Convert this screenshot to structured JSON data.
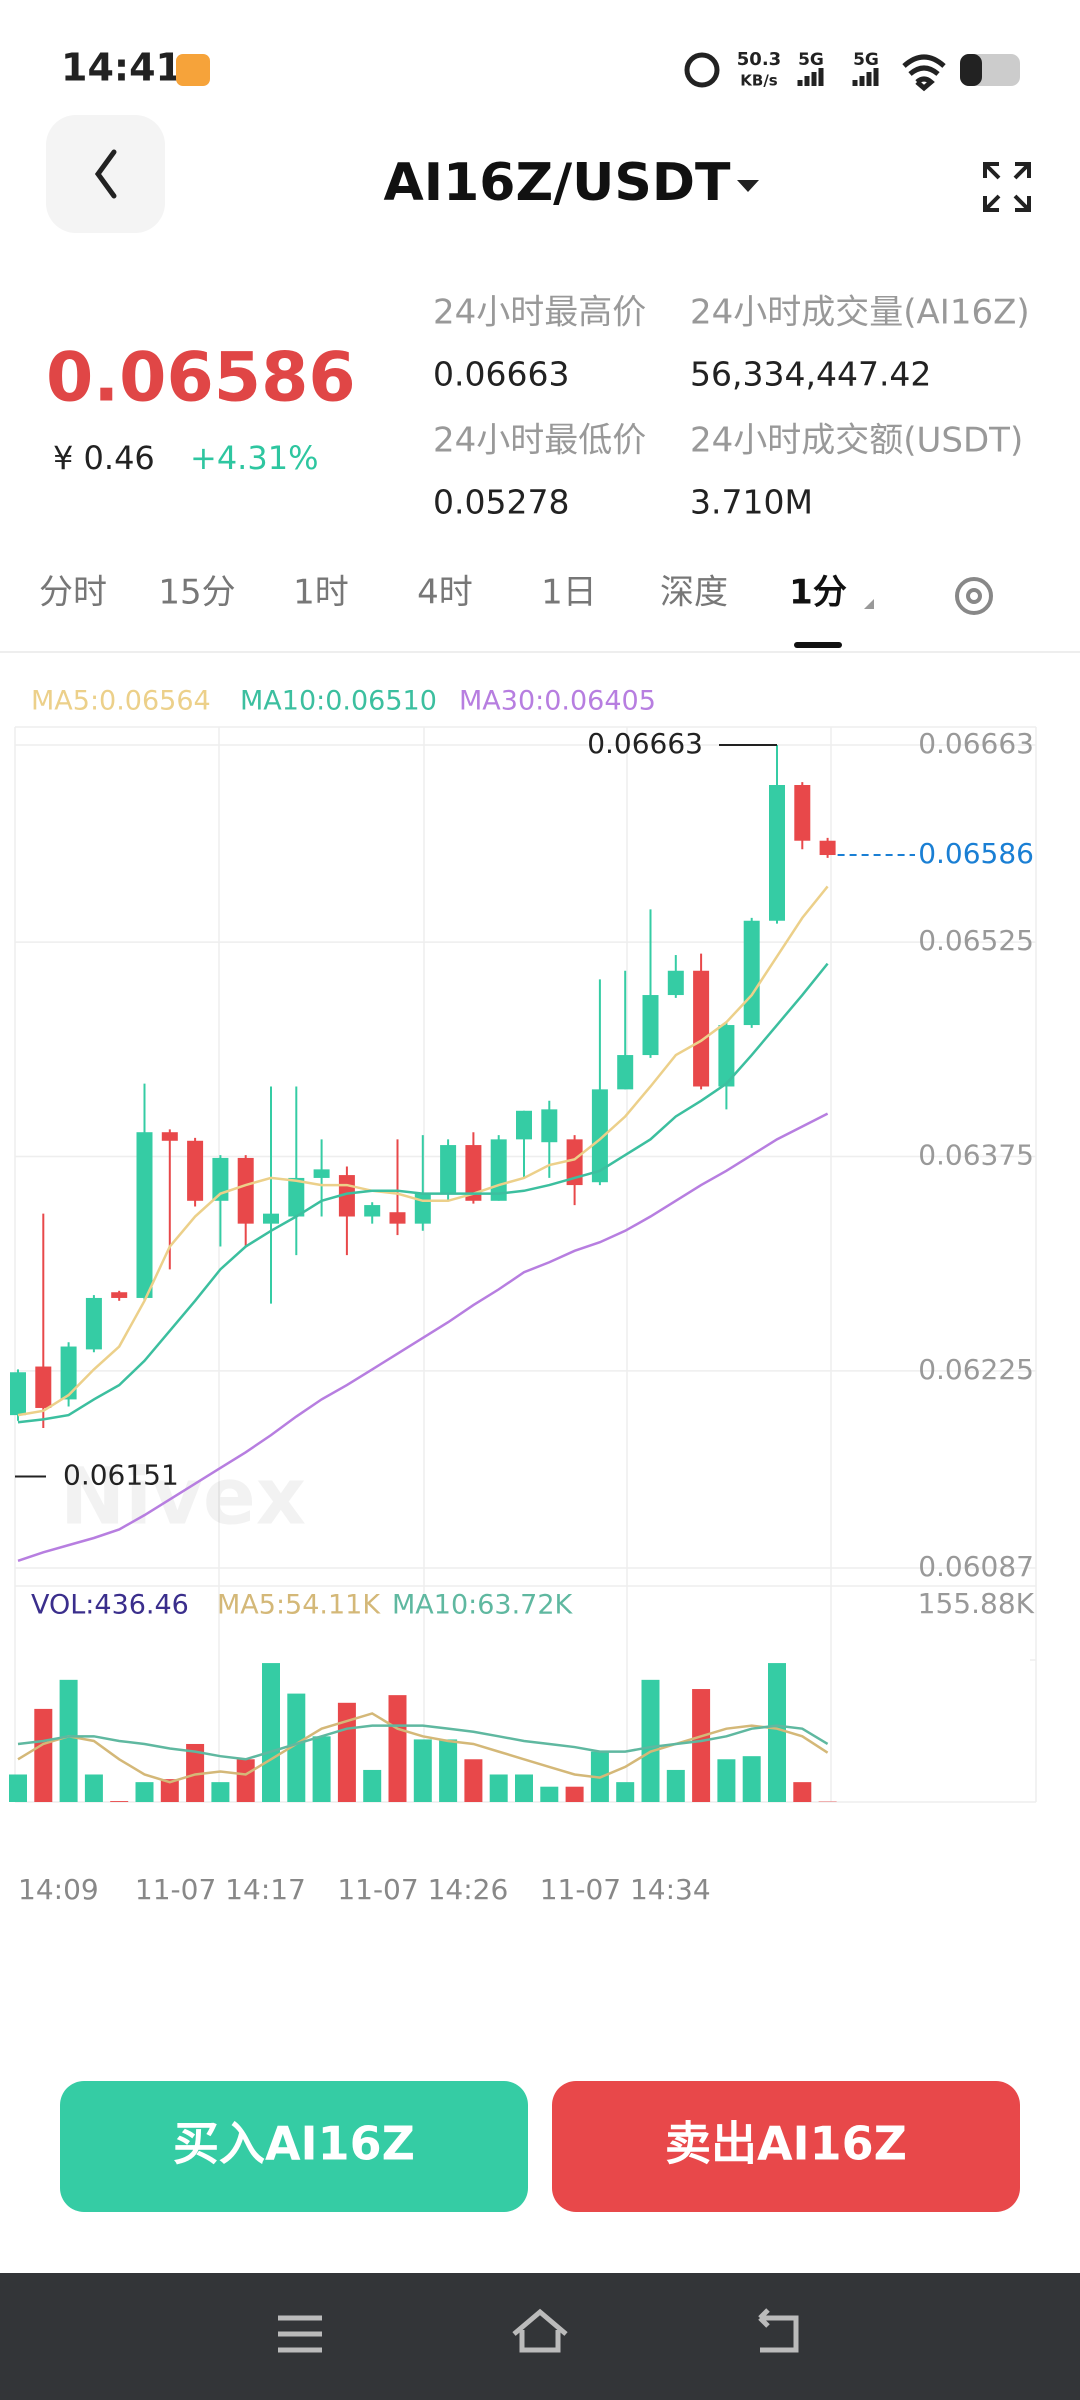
{
  "status_bar": {
    "time": "14:41",
    "speed": "50.3",
    "speed_unit": "KB/s",
    "network_1": "5G",
    "network_2": "5G"
  },
  "header": {
    "title": "AI16Z/USDT"
  },
  "ticker": {
    "price": "0.06586",
    "cny_price": "¥ 0.46",
    "change": "+4.31%",
    "stats": [
      {
        "label": "24小时最高价",
        "value": "0.06663"
      },
      {
        "label": "24小时成交量(AI16Z)",
        "value": "56,334,447.42"
      },
      {
        "label": "24小时最低价",
        "value": "0.05278"
      },
      {
        "label": "24小时成交额(USDT)",
        "value": "3.710M"
      }
    ]
  },
  "tabs": [
    {
      "label": "分时",
      "active": false
    },
    {
      "label": "15分",
      "active": false
    },
    {
      "label": "1时",
      "active": false
    },
    {
      "label": "4时",
      "active": false
    },
    {
      "label": "1日",
      "active": false
    },
    {
      "label": "深度",
      "active": false
    },
    {
      "label": "1分",
      "active": true
    }
  ],
  "watermark": "Nivex",
  "chart_data": {
    "type": "candlestick",
    "categories": [
      "14:09",
      null,
      null,
      null,
      null,
      null,
      null,
      null,
      "11-07 14:17",
      null,
      null,
      null,
      null,
      null,
      null,
      null,
      "11-07 14:26",
      null,
      null,
      null,
      null,
      null,
      null,
      null,
      "11-07 14:34",
      null,
      null,
      null,
      null,
      null,
      null,
      null,
      null
    ],
    "open": [
      0.06194,
      0.06228,
      0.06205,
      0.0624,
      0.0628,
      0.06276,
      0.06392,
      0.06386,
      0.06344,
      0.06374,
      0.06328,
      0.06333,
      0.0636,
      0.06362,
      0.06333,
      0.06336,
      0.06328,
      0.06349,
      0.06383,
      0.06344,
      0.06387,
      0.06385,
      0.06387,
      0.06357,
      0.06422,
      0.06446,
      0.06488,
      0.06505,
      0.06424,
      0.06467,
      0.0654,
      0.06635,
      0.06596
    ],
    "high": [
      0.06226,
      0.06335,
      0.06245,
      0.06278,
      0.06281,
      0.06426,
      0.06394,
      0.06388,
      0.06376,
      0.06376,
      0.06424,
      0.06424,
      0.06387,
      0.06368,
      0.06343,
      0.06387,
      0.0639,
      0.06387,
      0.06392,
      0.0639,
      0.06407,
      0.06414,
      0.0639,
      0.06499,
      0.06505,
      0.06548,
      0.06516,
      0.06517,
      0.06469,
      0.06542,
      0.06663,
      0.06637,
      0.06598
    ],
    "low": [
      0.0619,
      0.06185,
      0.062,
      0.06238,
      0.06274,
      0.06274,
      0.06296,
      0.0634,
      0.06312,
      0.06312,
      0.06272,
      0.06306,
      0.06333,
      0.06306,
      0.06328,
      0.0632,
      0.06323,
      0.06344,
      0.06342,
      0.06344,
      0.0636,
      0.0636,
      0.06341,
      0.06355,
      0.06422,
      0.06444,
      0.06486,
      0.06422,
      0.06408,
      0.06465,
      0.06538,
      0.0659,
      0.06584
    ],
    "close": [
      0.06224,
      0.06199,
      0.06242,
      0.06276,
      0.06276,
      0.06392,
      0.06386,
      0.06344,
      0.06374,
      0.06328,
      0.06335,
      0.0636,
      0.06366,
      0.06333,
      0.06341,
      0.06328,
      0.06349,
      0.06383,
      0.06344,
      0.06387,
      0.06407,
      0.06408,
      0.06355,
      0.06422,
      0.06446,
      0.06488,
      0.06505,
      0.06424,
      0.06467,
      0.0654,
      0.06635,
      0.06596,
      0.06586
    ],
    "up_color": "#35cca4",
    "down_color": "#e8484a",
    "series": [
      {
        "name": "MA5:0.06564",
        "color": "#ecd08a",
        "values": [
          0.06194,
          0.06197,
          0.06208,
          0.06226,
          0.06242,
          0.06274,
          0.06312,
          0.06333,
          0.06349,
          0.06355,
          0.0636,
          0.06358,
          0.06355,
          0.06355,
          0.06351,
          0.06349,
          0.06344,
          0.06344,
          0.06349,
          0.06355,
          0.0636,
          0.06369,
          0.06373,
          0.06387,
          0.06403,
          0.06424,
          0.06446,
          0.06456,
          0.06469,
          0.06488,
          0.06515,
          0.06542,
          0.06564
        ]
      },
      {
        "name": "MA10:0.06510",
        "color": "#3cbf9f",
        "values": [
          0.06189,
          0.06191,
          0.06194,
          0.06205,
          0.06215,
          0.06232,
          0.06253,
          0.06274,
          0.06296,
          0.06312,
          0.06323,
          0.06333,
          0.06344,
          0.06349,
          0.06351,
          0.06351,
          0.06349,
          0.06349,
          0.06349,
          0.06349,
          0.06351,
          0.06355,
          0.0636,
          0.06365,
          0.06376,
          0.06387,
          0.06403,
          0.06414,
          0.06426,
          0.06446,
          0.06467,
          0.06488,
          0.0651
        ]
      },
      {
        "name": "MA30:0.06405",
        "color": "#b77ee0",
        "values": [
          0.06092,
          0.06098,
          0.06103,
          0.06108,
          0.06114,
          0.06124,
          0.06135,
          0.06146,
          0.06157,
          0.06168,
          0.0618,
          0.06193,
          0.06205,
          0.06215,
          0.06226,
          0.06237,
          0.06248,
          0.06259,
          0.06271,
          0.06282,
          0.06294,
          0.06301,
          0.06309,
          0.06315,
          0.06323,
          0.06333,
          0.06344,
          0.06355,
          0.06365,
          0.06376,
          0.06387,
          0.06396,
          0.06405
        ]
      }
    ],
    "ylim": [
      0.06087,
      0.06663
    ],
    "yticks": [
      0.06663,
      0.06525,
      0.06375,
      0.06225,
      0.06087
    ],
    "grid": true,
    "current_price": 0.06586,
    "current_color": "#1a7fd4",
    "high_label": 0.06663,
    "low_label": 0.06151,
    "volume": {
      "title": "VOL:436.46",
      "title_color": "#3a2e8c",
      "values": [
        30200,
        102200,
        134100,
        30200,
        1000,
        21800,
        25100,
        63700,
        21800,
        46900,
        152500,
        119000,
        72100,
        108900,
        35200,
        117300,
        68700,
        68700,
        46900,
        30200,
        30200,
        16800,
        16800,
        55300,
        21800,
        134100,
        35200,
        124000,
        46900,
        50300,
        152500,
        21800,
        436.46
      ],
      "series": [
        {
          "name": "MA5:54.11K",
          "color": "#d4b878",
          "values": [
            46900,
            63700,
            72100,
            67000,
            46900,
            30200,
            21800,
            30200,
            33500,
            30200,
            46900,
            63700,
            80500,
            88800,
            97200,
            80500,
            72100,
            67000,
            63700,
            55300,
            46900,
            38500,
            30200,
            26800,
            38500,
            55300,
            63700,
            72100,
            80500,
            83800,
            80500,
            72100,
            54110
          ]
        },
        {
          "name": "MA10:63.72K",
          "color": "#5fb8a0",
          "values": [
            63700,
            67000,
            72100,
            72100,
            67000,
            63700,
            58700,
            55300,
            50300,
            46900,
            55300,
            63700,
            72100,
            80500,
            83800,
            83800,
            83800,
            80500,
            77100,
            72100,
            67000,
            63700,
            60300,
            55300,
            55300,
            60300,
            63700,
            67000,
            72100,
            80500,
            83800,
            80500,
            63720
          ]
        }
      ],
      "ylim": [
        0,
        155880
      ],
      "yticks": [
        {
          "value": 155880,
          "label": "155.88K"
        }
      ]
    }
  },
  "buttons": [
    {
      "label": "买入AI16Z",
      "color": "#35cca4"
    },
    {
      "label": "卖出AI16Z",
      "color": "#e8484a"
    }
  ]
}
